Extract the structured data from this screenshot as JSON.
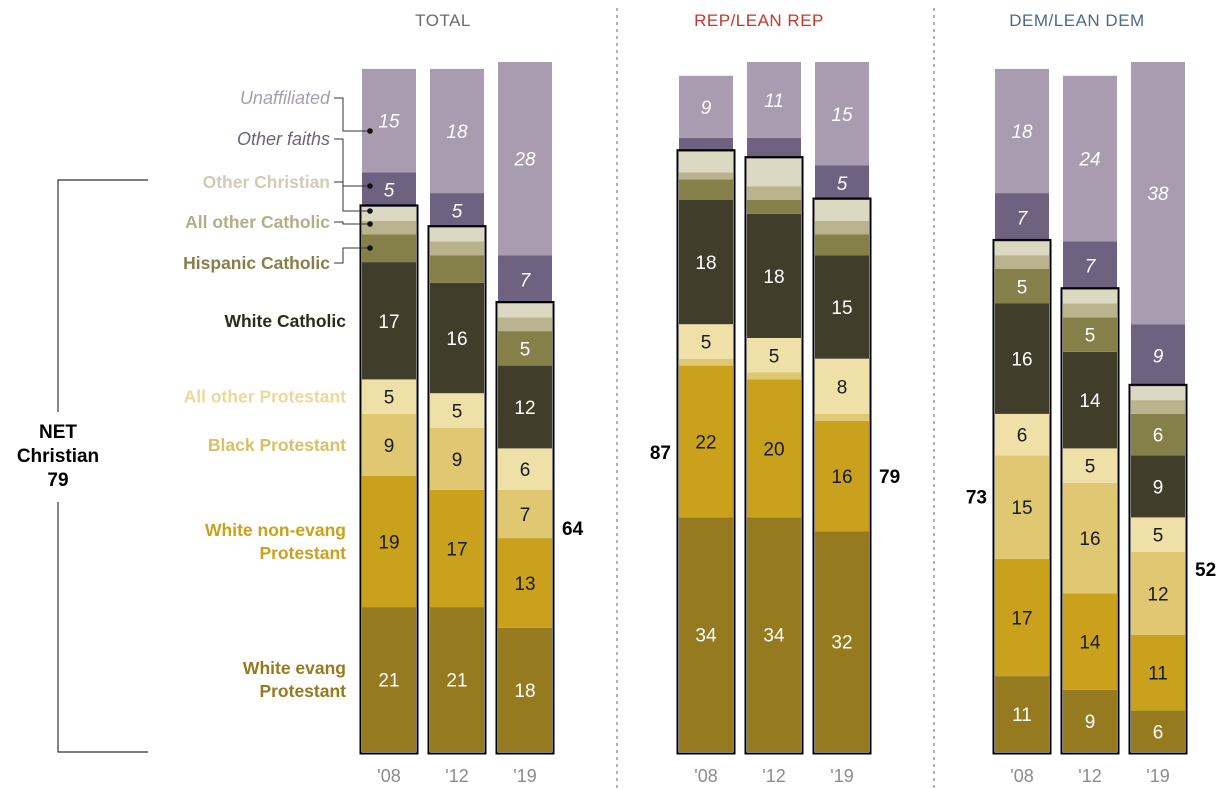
{
  "chart_data": {
    "type": "bar",
    "stacked": true,
    "groups": [
      {
        "name": "TOTAL",
        "title_color": "#6b6b6b",
        "years": [
          "'08",
          "'12",
          "'19"
        ],
        "net_christian": [
          null,
          null,
          64
        ],
        "series_values": {
          "White evang Protestant": [
            21,
            21,
            18
          ],
          "White non-evang Protestant": [
            19,
            17,
            13
          ],
          "Black Protestant": [
            9,
            9,
            7
          ],
          "All other Protestant": [
            5,
            5,
            6
          ],
          "White Catholic": [
            17,
            16,
            12
          ],
          "Hispanic Catholic": [
            4,
            4,
            5
          ],
          "All other Catholic": [
            2,
            2,
            2
          ],
          "Other Christian": [
            2,
            2,
            2
          ],
          "Other faiths": [
            5,
            5,
            7
          ],
          "Unaffiliated": [
            15,
            18,
            28
          ]
        }
      },
      {
        "name": "REP/LEAN REP",
        "title_color": "#c0392b",
        "years": [
          "'08",
          "'12",
          "'19"
        ],
        "net_christian": [
          87,
          null,
          79
        ],
        "series_values": {
          "White evang Protestant": [
            34,
            34,
            32
          ],
          "White non-evang Protestant": [
            22,
            20,
            16
          ],
          "Black Protestant": [
            1,
            1,
            1
          ],
          "All other Protestant": [
            5,
            5,
            8
          ],
          "White Catholic": [
            18,
            18,
            15
          ],
          "Hispanic Catholic": [
            3,
            2,
            3
          ],
          "All other Catholic": [
            1,
            2,
            2
          ],
          "Other Christian": [
            3,
            4,
            3
          ],
          "Other faiths": [
            2,
            3,
            5
          ],
          "Unaffiliated": [
            9,
            11,
            15
          ]
        }
      },
      {
        "name": "DEM/LEAN DEM",
        "title_color": "#4a6a8c",
        "years": [
          "'08",
          "'12",
          "'19"
        ],
        "net_christian": [
          73,
          null,
          52
        ],
        "series_values": {
          "White evang Protestant": [
            11,
            9,
            6
          ],
          "White non-evang Protestant": [
            17,
            14,
            11
          ],
          "Black Protestant": [
            15,
            16,
            12
          ],
          "All other Protestant": [
            6,
            5,
            5
          ],
          "White Catholic": [
            16,
            14,
            9
          ],
          "Hispanic Catholic": [
            5,
            5,
            6
          ],
          "All other Catholic": [
            2,
            2,
            2
          ],
          "Other Christian": [
            2,
            2,
            2
          ],
          "Other faiths": [
            7,
            7,
            9
          ],
          "Unaffiliated": [
            18,
            24,
            38
          ]
        }
      }
    ],
    "series": [
      {
        "name": "White evang Protestant",
        "color": "#957a20",
        "label_lines": [
          "White evang",
          "Protestant"
        ],
        "text_color": "#ffffff"
      },
      {
        "name": "White non-evang Protestant",
        "color": "#c9a11c",
        "label_lines": [
          "White non-evang",
          "Protestant"
        ],
        "text_color": "#1a1a1a"
      },
      {
        "name": "Black Protestant",
        "color": "#e0c872",
        "label_lines": [
          "Black Protestant"
        ],
        "text_color": "#1a1a1a"
      },
      {
        "name": "All other Protestant",
        "color": "#eee0a6",
        "label_lines": [
          "All other Protestant"
        ],
        "text_color": "#1a1a1a"
      },
      {
        "name": "White Catholic",
        "color": "#403d2a",
        "label_lines": [
          "White Catholic"
        ],
        "text_color": "#ffffff"
      },
      {
        "name": "Hispanic Catholic",
        "color": "#85804a",
        "label_lines": [
          "Hispanic Catholic"
        ],
        "text_color": "#ffffff"
      },
      {
        "name": "All other Catholic",
        "color": "#b9b48e",
        "label_lines": [
          "All other Catholic"
        ],
        "text_color": "#ffffff"
      },
      {
        "name": "Other Christian",
        "color": "#dcd9c2",
        "label_lines": [
          "Other Christian"
        ],
        "text_color": "#1a1a1a"
      },
      {
        "name": "Other faiths",
        "color": "#6f6180",
        "label_lines": [
          "Other faiths"
        ],
        "text_color": "#ffffff"
      },
      {
        "name": "Unaffiliated",
        "color": "#a99cb0",
        "label_lines": [
          "Unaffiliated"
        ],
        "text_color": "#ffffff"
      }
    ],
    "label_colors": {
      "White evang Protestant": "#957a20",
      "White non-evang Protestant": "#c9a11c",
      "Black Protestant": "#d8c06a",
      "All other Protestant": "#ecd99a",
      "White Catholic": "#2b2a1c",
      "Hispanic Catholic": "#85804a",
      "All other Catholic": "#b3ae88",
      "Other Christian": "#d0cdb4",
      "Other faiths": "#6f6180",
      "Unaffiliated": "#a99cb0"
    },
    "net_christian_label": {
      "lines": [
        "NET",
        "Christian",
        "79"
      ]
    }
  }
}
